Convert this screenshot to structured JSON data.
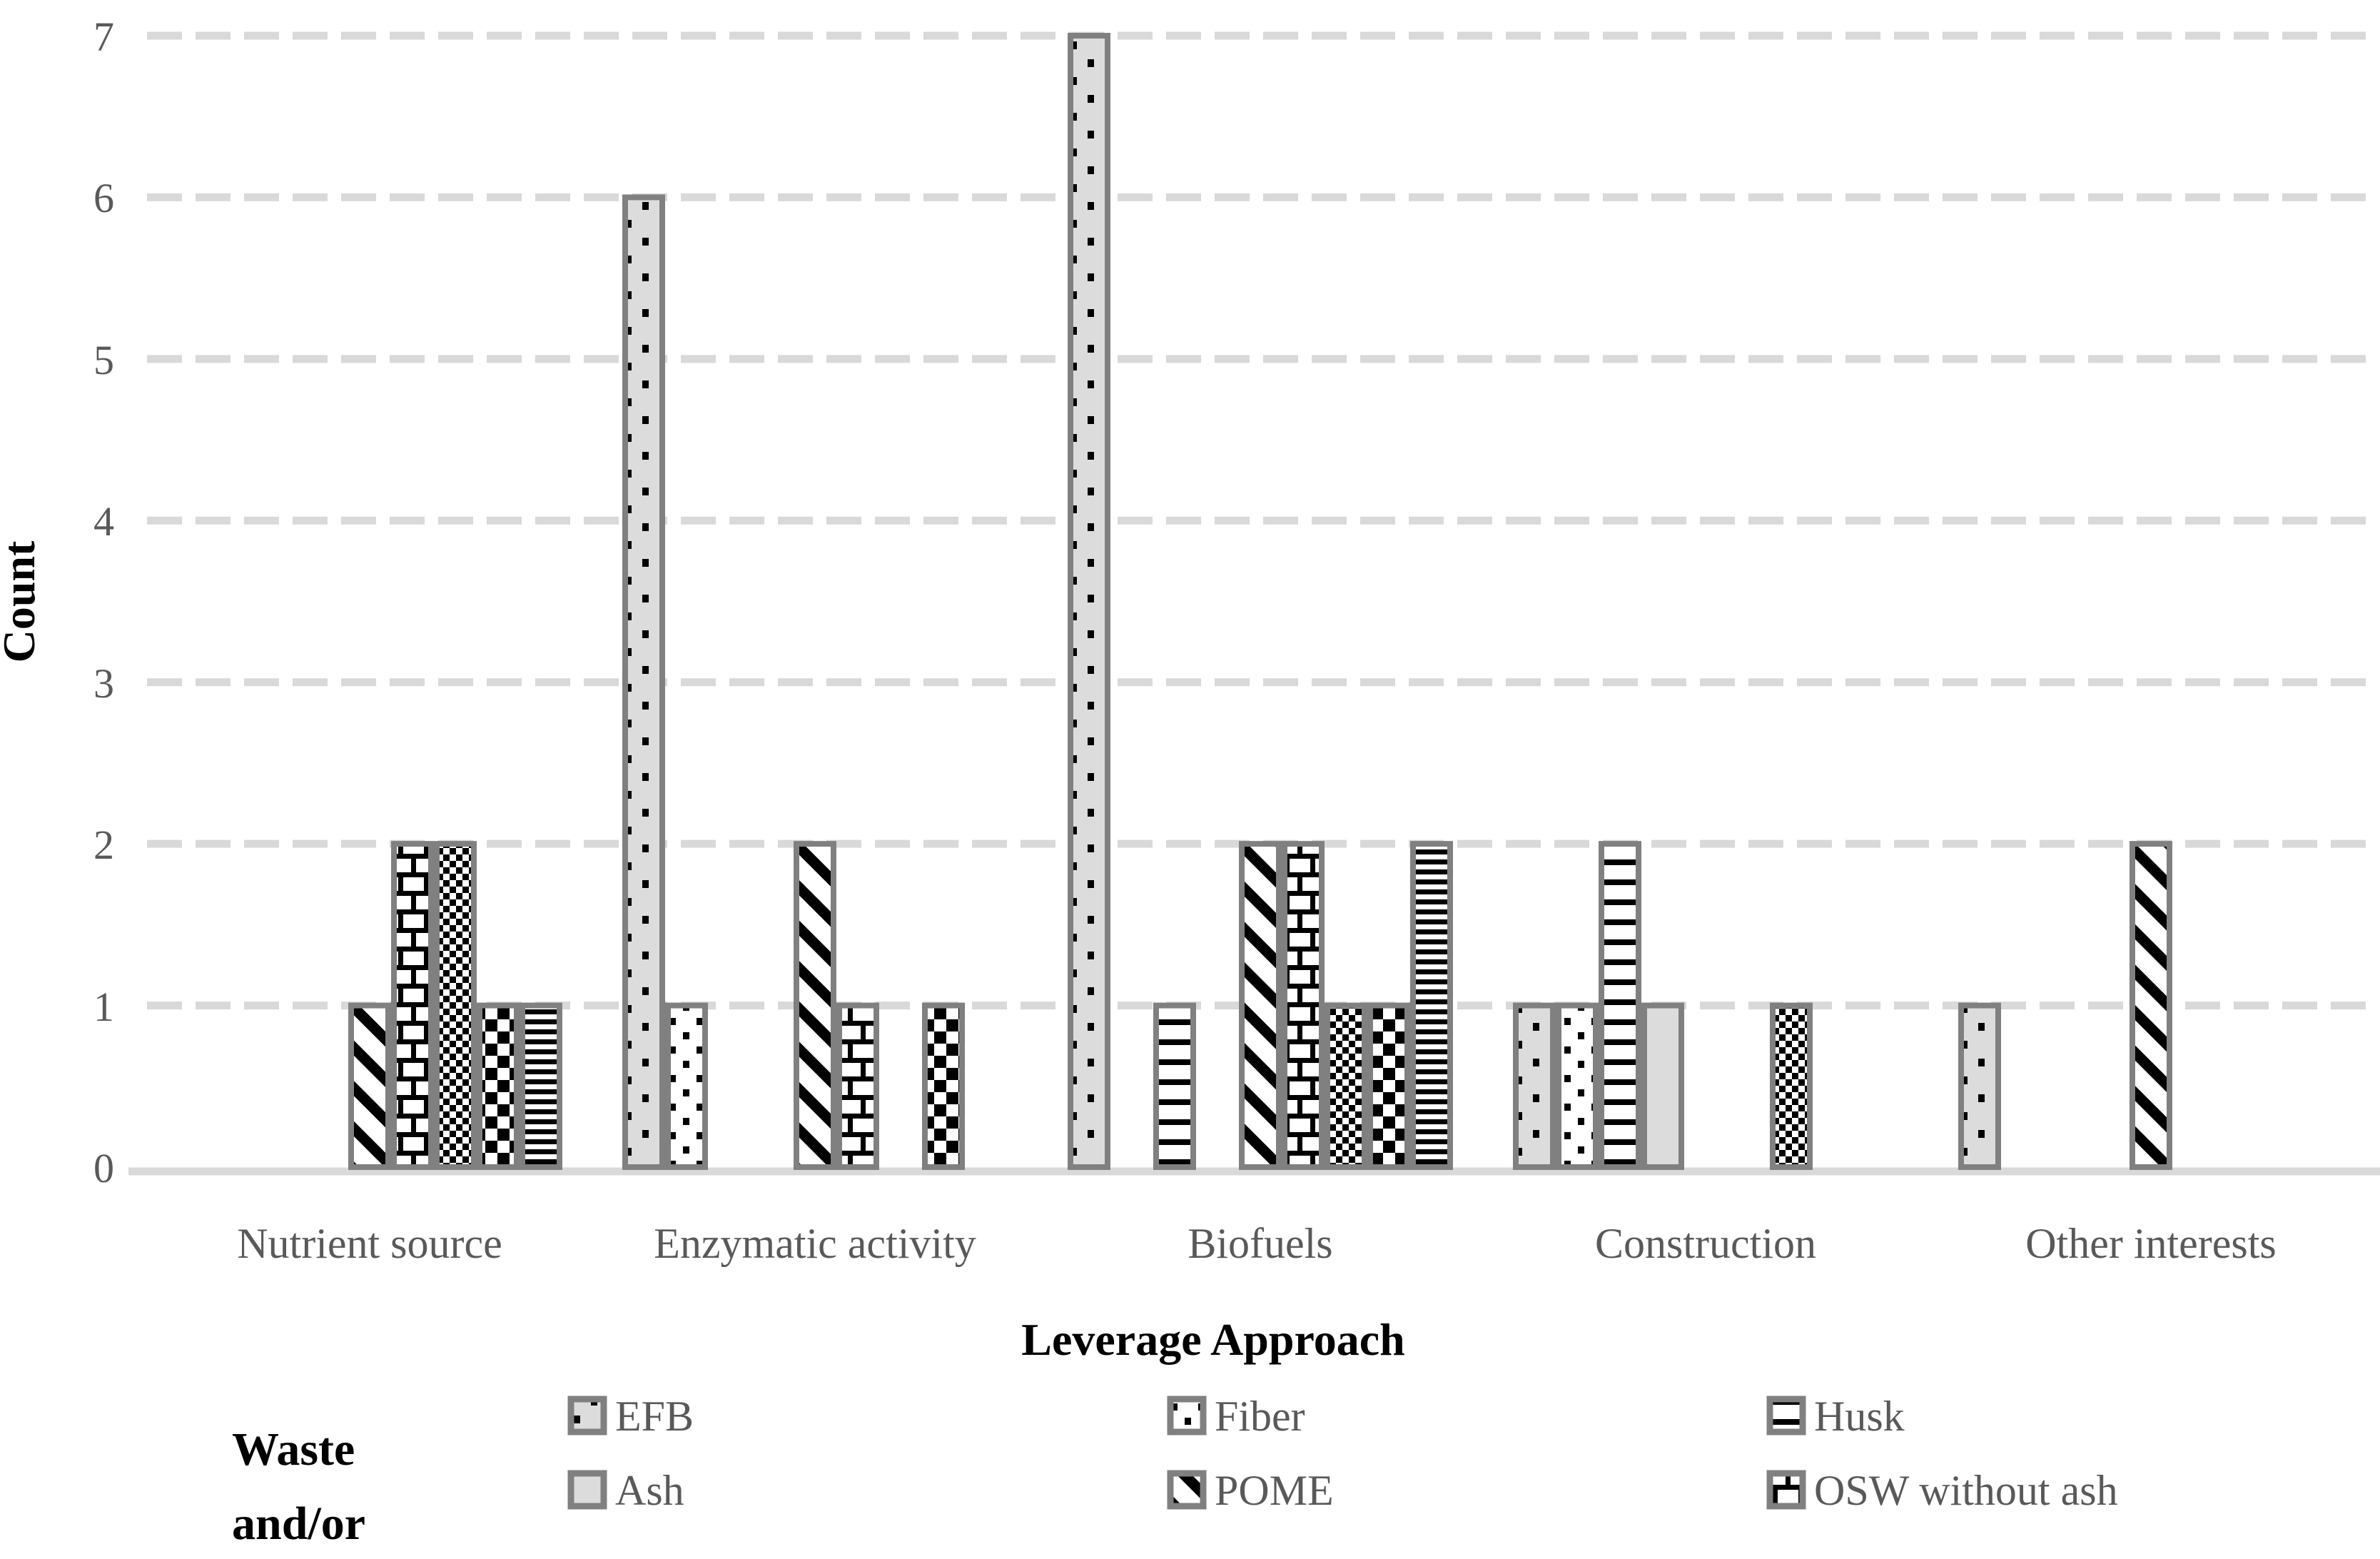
{
  "y_axis": {
    "label": "Count",
    "ticks": [
      "0",
      "1",
      "2",
      "3",
      "4",
      "5",
      "6",
      "7"
    ]
  },
  "x_axis": {
    "label": "Leverage Approach"
  },
  "legend": {
    "title_lines": [
      "Waste",
      "and/or"
    ],
    "entries": [
      {
        "label": "EFB",
        "pattern": "gray-dotted"
      },
      {
        "label": "Fiber",
        "pattern": "white-dotted"
      },
      {
        "label": "Husk",
        "pattern": "lines-wide"
      },
      {
        "label": "Ash",
        "pattern": "solid-gray"
      },
      {
        "label": "POME",
        "pattern": "diagonal"
      },
      {
        "label": "OSW without ash",
        "pattern": "brick"
      }
    ]
  },
  "colors": {
    "bar_border": "#808080",
    "gray_fill": "#DCDCDC",
    "gridline": "#D9D9D9",
    "text_gray": "#595959",
    "text_black": "#000000"
  },
  "chart_data": {
    "type": "bar",
    "title": "",
    "xlabel": "Leverage Approach",
    "ylabel": "Count",
    "ylim": [
      0,
      7
    ],
    "grid": "dashed-horizontal",
    "legend_position": "bottom",
    "categories": [
      "Nutrient source",
      "Enzymatic activity",
      "Biofuels",
      "Construction",
      "Other interests"
    ],
    "series": [
      {
        "name": "EFB",
        "pattern": "gray-dotted",
        "legend_visible": true,
        "values": [
          0,
          6,
          7,
          1,
          1
        ]
      },
      {
        "name": "Fiber",
        "pattern": "white-dotted",
        "legend_visible": true,
        "values": [
          0,
          1,
          0,
          1,
          0
        ]
      },
      {
        "name": "Husk",
        "pattern": "lines-wide",
        "legend_visible": true,
        "values": [
          0,
          0,
          1,
          2,
          0
        ]
      },
      {
        "name": "Ash",
        "pattern": "solid-gray",
        "legend_visible": true,
        "values": [
          0,
          0,
          0,
          1,
          0
        ]
      },
      {
        "name": "POME",
        "pattern": "diagonal",
        "legend_visible": true,
        "values": [
          1,
          2,
          2,
          0,
          2
        ]
      },
      {
        "name": "OSW without ash",
        "pattern": "brick",
        "legend_visible": true,
        "values": [
          2,
          1,
          2,
          0,
          0
        ]
      },
      {
        "name": "",
        "pattern": "check-small",
        "legend_visible": false,
        "values": [
          2,
          0,
          1,
          1,
          0
        ]
      },
      {
        "name": "",
        "pattern": "check-large",
        "legend_visible": false,
        "values": [
          1,
          1,
          1,
          0,
          0
        ]
      },
      {
        "name": "",
        "pattern": "lines-dense",
        "legend_visible": false,
        "values": [
          1,
          0,
          2,
          0,
          0
        ]
      }
    ]
  }
}
